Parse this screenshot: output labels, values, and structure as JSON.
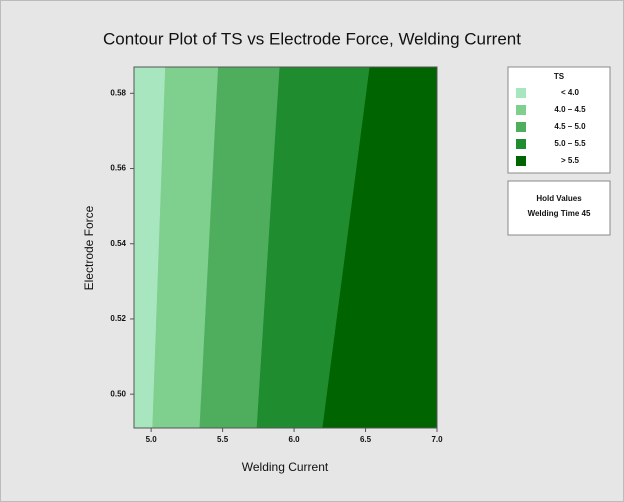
{
  "chart_data": {
    "type": "contour",
    "title": "Contour Plot of TS vs Electrode Force, Welding Current",
    "x_label": "Welding Current",
    "y_label": "Electrode Force",
    "xlim": [
      4.88,
      7.0
    ],
    "ylim": [
      0.491,
      0.587
    ],
    "xticks": [
      {
        "value": 5,
        "label": "5.0"
      },
      {
        "value": 5.5,
        "label": "5.5"
      },
      {
        "value": 6,
        "label": "6.0"
      },
      {
        "value": 6.5,
        "label": "6.5"
      },
      {
        "value": 7,
        "label": "7.0"
      }
    ],
    "yticks": [
      {
        "value": 0.5,
        "label": "0.50"
      },
      0.52,
      0.54,
      0.56,
      0.58
    ],
    "contours": [
      {
        "level": 4.0,
        "x_bottom": 5.01,
        "x_top": 5.1
      },
      {
        "level": 4.5,
        "x_bottom": 5.34,
        "x_top": 5.47
      },
      {
        "level": 5.0,
        "x_bottom": 5.74,
        "x_top": 5.9
      },
      {
        "level": 5.5,
        "x_bottom": 6.2,
        "x_top": 6.53
      }
    ],
    "legend_title": "TS",
    "legend": [
      {
        "label": "< 4.0",
        "color": "#a8e6c0"
      },
      {
        "label": "4.0 – 4.5",
        "color": "#7fcf8e"
      },
      {
        "label": "4.5 – 5.0",
        "color": "#4fae5e"
      },
      {
        "label": "5.0 – 5.5",
        "color": "#1f8c2f"
      },
      {
        "label": "> 5.5",
        "color": "#006400"
      }
    ],
    "hold_title": "Hold Values",
    "hold_text": "Welding Time 45"
  }
}
